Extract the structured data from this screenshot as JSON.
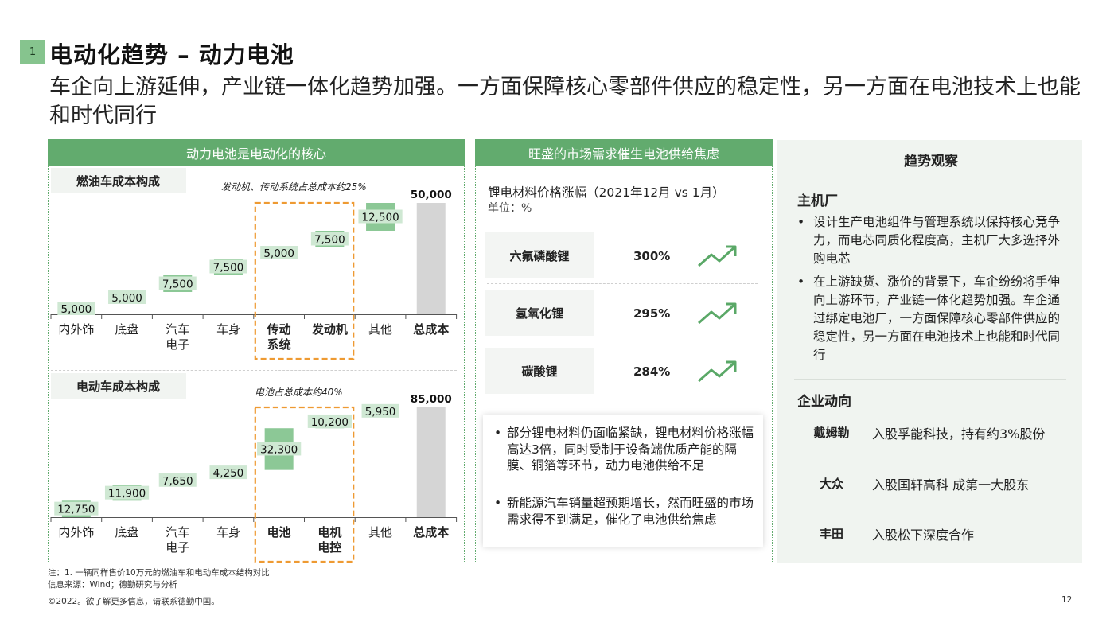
{
  "page": {
    "badge": "1",
    "title": "电动化趋势 – 动力电池",
    "subtitle": "车企向上游延伸，产业链一体化趋势加强。一方面保障核心零部件供应的稳定性，另一方面在电池技术上也能和时代同行",
    "footnote1": "注：1. 一辆同样售价10万元的燃油车和电动车成本结构对比",
    "footnote2": "信息来源：Wind；德勤研究与分析",
    "copyright": "©2022。欲了解更多信息，请联系德勤中国。",
    "page_number": "12"
  },
  "left_panel": {
    "header": "动力电池是电动化的核心",
    "fuel_tab": "燃油车成本构成",
    "fuel_note": "发动机、传动系统占总成本约25%",
    "ev_tab": "电动车成本构成",
    "ev_note": "电池占总成本约40%"
  },
  "middle_panel": {
    "header": "旺盛的市场需求催生电池供给焦虑",
    "chart_title": "锂电材料价格涨幅（2021年12月 vs 1月）",
    "unit": "单位：%",
    "bullets": [
      "部分锂电材料仍面临紧缺，锂电材料价格涨幅高达3倍，同时受制于设备端优质产能的隔膜、铜箔等环节，动力电池供给不足",
      "新能源汽车销量超预期增长，然而旺盛的市场需求得不到满足，催化了电池供给焦虑"
    ]
  },
  "right_panel": {
    "title": "趋势观察",
    "oem_heading": "主机厂",
    "oem_bullets": [
      "设计生产电池组件与管理系统以保持核心竞争力，而电芯同质化程度高，主机厂大多选择外购电芯",
      "在上游缺货、涨价的背景下，车企纷纷将手伸向上游环节，产业链一体化趋势加强。车企通过绑定电池厂，一方面保障核心零部件供应的稳定性，另一方面在电池技术上也能和时代同行"
    ],
    "company_heading": "企业动向",
    "companies": [
      {
        "name": "戴姆勒",
        "desc": "入股孚能科技，持有约3%股份"
      },
      {
        "name": "大众",
        "desc": "入股国轩高科 成第一大股东"
      },
      {
        "name": "丰田",
        "desc": "入股松下深度合作"
      }
    ]
  },
  "colors": {
    "green": "#62ab6e",
    "bar_green": "#8cc896",
    "total_gray": "#d5d5d5",
    "highlight_orange": "#ee9a32",
    "panel_bg": "#f0f4f0"
  },
  "chart_data": [
    {
      "type": "bar",
      "subtype": "waterfall",
      "title": "燃油车成本构成",
      "categories": [
        "内外饰",
        "底盘",
        "汽车\n电子",
        "车身",
        "传动\n系统",
        "发动机",
        "其他",
        "总成本"
      ],
      "values": [
        5000,
        5000,
        7500,
        7500,
        5000,
        7500,
        12500,
        50000
      ],
      "value_labels": [
        "5,000",
        "5,000",
        "7,500",
        "7,500",
        "5,000",
        "7,500",
        "12,500",
        "50,000"
      ],
      "highlighted": [
        "传动\n系统",
        "发动机"
      ],
      "annotation": "发动机、传动系统占总成本约25%",
      "ylim": [
        0,
        50000
      ]
    },
    {
      "type": "bar",
      "subtype": "waterfall",
      "title": "电动车成本构成",
      "categories": [
        "内外饰",
        "底盘",
        "汽车\n电子",
        "车身",
        "电池",
        "电机\n电控",
        "其他",
        "总成本"
      ],
      "values": [
        12750,
        11900,
        7650,
        4250,
        32300,
        10200,
        5950,
        85000
      ],
      "value_labels": [
        "12,750",
        "11,900",
        "7,650",
        "4,250",
        "32,300",
        "10,200",
        "5,950",
        "85,000"
      ],
      "highlighted": [
        "电池",
        "电机\n电控"
      ],
      "annotation": "电池占总成本约40%",
      "ylim": [
        0,
        85000
      ]
    },
    {
      "type": "table",
      "title": "锂电材料价格涨幅（2021年12月 vs 1月）",
      "unit": "%",
      "categories": [
        "六氟磷酸锂",
        "氢氧化锂",
        "碳酸锂"
      ],
      "values": [
        300,
        295,
        284
      ],
      "value_labels": [
        "300%",
        "295%",
        "284%"
      ],
      "trend_icon": "trend-up-arrow-icon"
    }
  ]
}
